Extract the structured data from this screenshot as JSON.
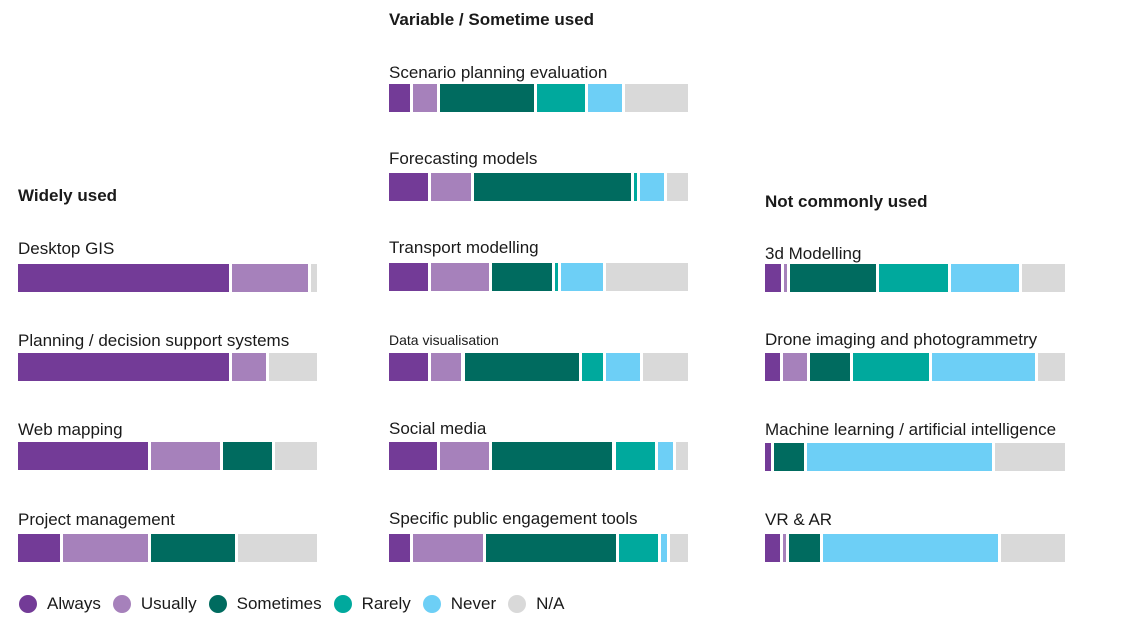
{
  "colors": {
    "Always": "#733b97",
    "Usually": "#a681bb",
    "Sometimes": "#006b5f",
    "Rarely": "#00a99d",
    "Never": "#6dcff6",
    "N/A": "#d9d9d9"
  },
  "chart_data": {
    "type": "bar",
    "stacked": "horizontal-100-percent",
    "categories_order": [
      "Always",
      "Usually",
      "Sometimes",
      "Rarely",
      "Never",
      "N/A"
    ],
    "legend": {
      "placement": "bottom-left",
      "entries": [
        "Always",
        "Usually",
        "Sometimes",
        "Rarely",
        "Never",
        "N/A"
      ]
    },
    "groups": [
      {
        "title": "Widely used",
        "items": [
          {
            "label": "Desktop GIS",
            "values": [
              71,
              26,
              0,
              0,
              0,
              3
            ]
          },
          {
            "label": "Planning / decision support systems",
            "values": [
              71,
              12,
              0,
              0,
              0,
              17
            ]
          },
          {
            "label": "Web mapping",
            "values": [
              44,
              24,
              17,
              0,
              0,
              15
            ]
          },
          {
            "label": "Project management",
            "values": [
              15,
              29,
              29,
              0,
              0,
              27
            ]
          }
        ]
      },
      {
        "title": "Variable / Sometime used",
        "items": [
          {
            "label": "Scenario planning evaluation",
            "values": [
              8,
              9,
              32,
              17,
              12,
              22
            ]
          },
          {
            "label": "Forecasting models",
            "values": [
              14,
              14,
              53,
              2,
              9,
              8
            ]
          },
          {
            "label": "Transport modelling",
            "values": [
              14,
              20,
              21,
              2,
              15,
              28
            ]
          },
          {
            "label": "Data visualisation",
            "small": true,
            "values": [
              14,
              11,
              39,
              8,
              12,
              16
            ]
          },
          {
            "label": "Social media",
            "values": [
              17,
              17,
              41,
              14,
              6,
              5
            ]
          },
          {
            "label": "Specific public engagement tools",
            "values": [
              8,
              24,
              44,
              14,
              3,
              7
            ]
          }
        ]
      },
      {
        "title": "Not commonly used",
        "items": [
          {
            "label": "3d Modelling",
            "values": [
              6,
              2,
              29,
              23,
              23,
              15
            ]
          },
          {
            "label": "Drone imaging and photogrammetry",
            "values": [
              6,
              9,
              14,
              26,
              35,
              10
            ]
          },
          {
            "label": "Machine learning / artificial intelligence",
            "values": [
              3,
              0,
              11,
              0,
              62,
              24
            ]
          },
          {
            "label": "VR & AR",
            "values": [
              6,
              2,
              11,
              0,
              59,
              22
            ]
          }
        ]
      }
    ]
  }
}
